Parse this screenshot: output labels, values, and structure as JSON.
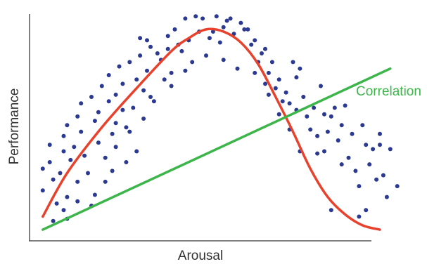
{
  "chart_data": {
    "type": "scatter",
    "title": "",
    "xlabel": "Arousal",
    "ylabel": "Performance",
    "xlim": [
      0,
      100
    ],
    "ylim": [
      0,
      100
    ],
    "ticks_shown": false,
    "grid": false,
    "axes": "left-bottom",
    "colors": {
      "points": "#2b3990",
      "curve": "#e8412c",
      "correlation": "#3cb54a",
      "axis": "#555555"
    },
    "points": [
      [
        3,
        27
      ],
      [
        3,
        17
      ],
      [
        5,
        38
      ],
      [
        5,
        30
      ],
      [
        6,
        22
      ],
      [
        6,
        3
      ],
      [
        7,
        11
      ],
      [
        8,
        25
      ],
      [
        9,
        35
      ],
      [
        9,
        42
      ],
      [
        9,
        8
      ],
      [
        10,
        4
      ],
      [
        10,
        47
      ],
      [
        10,
        14
      ],
      [
        11,
        31
      ],
      [
        12,
        37
      ],
      [
        13,
        21
      ],
      [
        13,
        51
      ],
      [
        13,
        12
      ],
      [
        14,
        44
      ],
      [
        14,
        57
      ],
      [
        15,
        33
      ],
      [
        16,
        25
      ],
      [
        17,
        60
      ],
      [
        17,
        10
      ],
      [
        18,
        49
      ],
      [
        18,
        15
      ],
      [
        19,
        39
      ],
      [
        19,
        53
      ],
      [
        20,
        65
      ],
      [
        21,
        21
      ],
      [
        21,
        32
      ],
      [
        22,
        70
      ],
      [
        22,
        58
      ],
      [
        23,
        43
      ],
      [
        23,
        26
      ],
      [
        24,
        48
      ],
      [
        24,
        61
      ],
      [
        24,
        37
      ],
      [
        25,
        74
      ],
      [
        26,
        54
      ],
      [
        26,
        66
      ],
      [
        27,
        30
      ],
      [
        27,
        46
      ],
      [
        28,
        76
      ],
      [
        28,
        44
      ],
      [
        29,
        55
      ],
      [
        30,
        68
      ],
      [
        30,
        35
      ],
      [
        31,
        87
      ],
      [
        31,
        79
      ],
      [
        32,
        63
      ],
      [
        32,
        50
      ],
      [
        33,
        86
      ],
      [
        33,
        72
      ],
      [
        34,
        83
      ],
      [
        34,
        60
      ],
      [
        35,
        58
      ],
      [
        36,
        80
      ],
      [
        37,
        77
      ],
      [
        38,
        68
      ],
      [
        39,
        88
      ],
      [
        39,
        82
      ],
      [
        40,
        71
      ],
      [
        40,
        65
      ],
      [
        41,
        91
      ],
      [
        42,
        84
      ],
      [
        43,
        81
      ],
      [
        44,
        72
      ],
      [
        44,
        96
      ],
      [
        45,
        86
      ],
      [
        46,
        76
      ],
      [
        47,
        97
      ],
      [
        48,
        90
      ],
      [
        49,
        96
      ],
      [
        50,
        79
      ],
      [
        51,
        87
      ],
      [
        52,
        90
      ],
      [
        53,
        97
      ],
      [
        54,
        85
      ],
      [
        55,
        92
      ],
      [
        55,
        77
      ],
      [
        56,
        95
      ],
      [
        57,
        96
      ],
      [
        58,
        89
      ],
      [
        59,
        73
      ],
      [
        60,
        94
      ],
      [
        61,
        91
      ],
      [
        62,
        91
      ],
      [
        63,
        84
      ],
      [
        64,
        71
      ],
      [
        64,
        86
      ],
      [
        65,
        76
      ],
      [
        66,
        80
      ],
      [
        67,
        66
      ],
      [
        67,
        82
      ],
      [
        68,
        71
      ],
      [
        68,
        61
      ],
      [
        69,
        76
      ],
      [
        70,
        64
      ],
      [
        71,
        52
      ],
      [
        71,
        68
      ],
      [
        72,
        58
      ],
      [
        73,
        62
      ],
      [
        74,
        57
      ],
      [
        74,
        45
      ],
      [
        75,
        76
      ],
      [
        76,
        69
      ],
      [
        76,
        54
      ],
      [
        77,
        73
      ],
      [
        77,
        35
      ],
      [
        78,
        60
      ],
      [
        79,
        51
      ],
      [
        80,
        45
      ],
      [
        81,
        55
      ],
      [
        82,
        42
      ],
      [
        82,
        34
      ],
      [
        83,
        65
      ],
      [
        84,
        52
      ],
      [
        84,
        35
      ],
      [
        85,
        44
      ],
      [
        86,
        51
      ],
      [
        86,
        8
      ],
      [
        87,
        55
      ],
      [
        88,
        40
      ],
      [
        89,
        29
      ],
      [
        89,
        47
      ],
      [
        90,
        56
      ],
      [
        91,
        32
      ],
      [
        92,
        43
      ],
      [
        93,
        26
      ],
      [
        94,
        19
      ],
      [
        94,
        5
      ],
      [
        95,
        47
      ],
      [
        96,
        38
      ],
      [
        96,
        8
      ],
      [
        97,
        29
      ],
      [
        98,
        36
      ],
      [
        99,
        22
      ],
      [
        100,
        38
      ],
      [
        100,
        43
      ],
      [
        101,
        24
      ],
      [
        102,
        14
      ],
      [
        103,
        36
      ],
      [
        105,
        19
      ]
    ],
    "series": [
      {
        "kind": "curve",
        "x": [
          3,
          10,
          20,
          30,
          40,
          45,
          50,
          55,
          60,
          65,
          70,
          75,
          80,
          85,
          90,
          95,
          100
        ],
        "y": [
          5,
          25,
          46,
          64,
          81,
          87,
          91,
          90,
          85,
          75,
          60,
          44,
          27,
          14,
          6,
          1,
          -1
        ]
      },
      {
        "name": "Correlation",
        "kind": "line",
        "x": [
          3,
          103
        ],
        "y": [
          -1,
          73
        ]
      }
    ]
  }
}
